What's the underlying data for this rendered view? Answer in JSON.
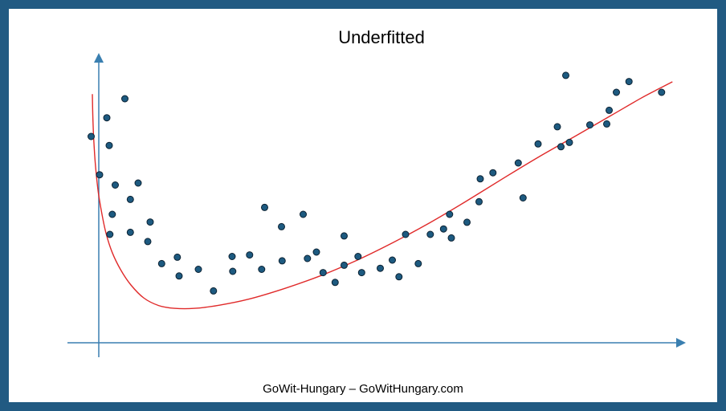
{
  "footer": "GoWit-Hungary – GoWitHungary.com",
  "colors": {
    "frame": "#215a82",
    "axis": "#3a7fb0",
    "point_fill": "#1d5a80",
    "point_stroke": "#0c2233",
    "curve": "#e02a2a"
  },
  "chart_data": {
    "type": "scatter",
    "title": "Underfitted",
    "xlabel": "",
    "ylabel": "",
    "xlim": [
      0,
      100
    ],
    "ylim": [
      0,
      100
    ],
    "grid": false,
    "legend": "none",
    "points": [
      [
        1.8,
        80.3
      ],
      [
        3.2,
        65.4
      ],
      [
        4.4,
        87.6
      ],
      [
        4.8,
        76.8
      ],
      [
        4.9,
        42.2
      ],
      [
        5.3,
        50.0
      ],
      [
        5.8,
        61.4
      ],
      [
        7.4,
        95.0
      ],
      [
        8.3,
        55.8
      ],
      [
        8.3,
        43.0
      ],
      [
        9.6,
        62.2
      ],
      [
        11.2,
        39.4
      ],
      [
        11.6,
        47.0
      ],
      [
        13.5,
        30.8
      ],
      [
        16.1,
        33.3
      ],
      [
        16.4,
        26.0
      ],
      [
        19.6,
        28.6
      ],
      [
        22.1,
        20.2
      ],
      [
        25.2,
        33.6
      ],
      [
        25.3,
        27.8
      ],
      [
        28.1,
        34.2
      ],
      [
        30.1,
        28.6
      ],
      [
        30.6,
        52.7
      ],
      [
        33.4,
        45.2
      ],
      [
        33.5,
        31.9
      ],
      [
        37.0,
        50.0
      ],
      [
        37.7,
        32.8
      ],
      [
        39.2,
        35.3
      ],
      [
        40.3,
        27.3
      ],
      [
        42.3,
        23.5
      ],
      [
        43.8,
        41.6
      ],
      [
        43.8,
        30.2
      ],
      [
        46.1,
        33.6
      ],
      [
        46.7,
        27.3
      ],
      [
        49.8,
        29.0
      ],
      [
        51.8,
        32.2
      ],
      [
        52.9,
        25.7
      ],
      [
        54.0,
        42.2
      ],
      [
        56.1,
        30.8
      ],
      [
        58.1,
        42.2
      ],
      [
        60.3,
        44.3
      ],
      [
        61.3,
        50.0
      ],
      [
        61.6,
        40.8
      ],
      [
        64.2,
        46.9
      ],
      [
        66.2,
        54.9
      ],
      [
        66.4,
        63.8
      ],
      [
        68.5,
        66.2
      ],
      [
        72.7,
        70.0
      ],
      [
        73.5,
        56.4
      ],
      [
        76.0,
        77.4
      ],
      [
        79.2,
        84.1
      ],
      [
        79.8,
        76.3
      ],
      [
        80.6,
        104.1
      ],
      [
        81.2,
        78.0
      ],
      [
        84.6,
        84.8
      ],
      [
        87.4,
        85.2
      ],
      [
        87.8,
        90.5
      ],
      [
        89.0,
        97.5
      ],
      [
        91.1,
        101.7
      ],
      [
        96.5,
        97.5
      ]
    ],
    "fit_curve": [
      [
        2.0,
        96.8
      ],
      [
        2.1,
        86.0
      ],
      [
        2.3,
        76.0
      ],
      [
        2.6,
        66.8
      ],
      [
        3.0,
        58.3
      ],
      [
        3.6,
        50.0
      ],
      [
        4.3,
        42.3
      ],
      [
        5.3,
        35.1
      ],
      [
        6.7,
        28.4
      ],
      [
        8.4,
        22.5
      ],
      [
        10.5,
        17.5
      ],
      [
        13.0,
        14.5
      ],
      [
        15.6,
        13.4
      ],
      [
        19.0,
        13.4
      ],
      [
        23.0,
        14.6
      ],
      [
        28.0,
        17.0
      ],
      [
        34.0,
        21.2
      ],
      [
        40.0,
        26.2
      ],
      [
        46.0,
        32.2
      ],
      [
        52.0,
        39.1
      ],
      [
        58.0,
        46.7
      ],
      [
        64.0,
        55.0
      ],
      [
        70.0,
        63.7
      ],
      [
        76.0,
        72.2
      ],
      [
        82.0,
        80.2
      ],
      [
        88.0,
        88.3
      ],
      [
        93.0,
        95.1
      ],
      [
        96.0,
        98.8
      ],
      [
        98.3,
        101.6
      ]
    ]
  }
}
